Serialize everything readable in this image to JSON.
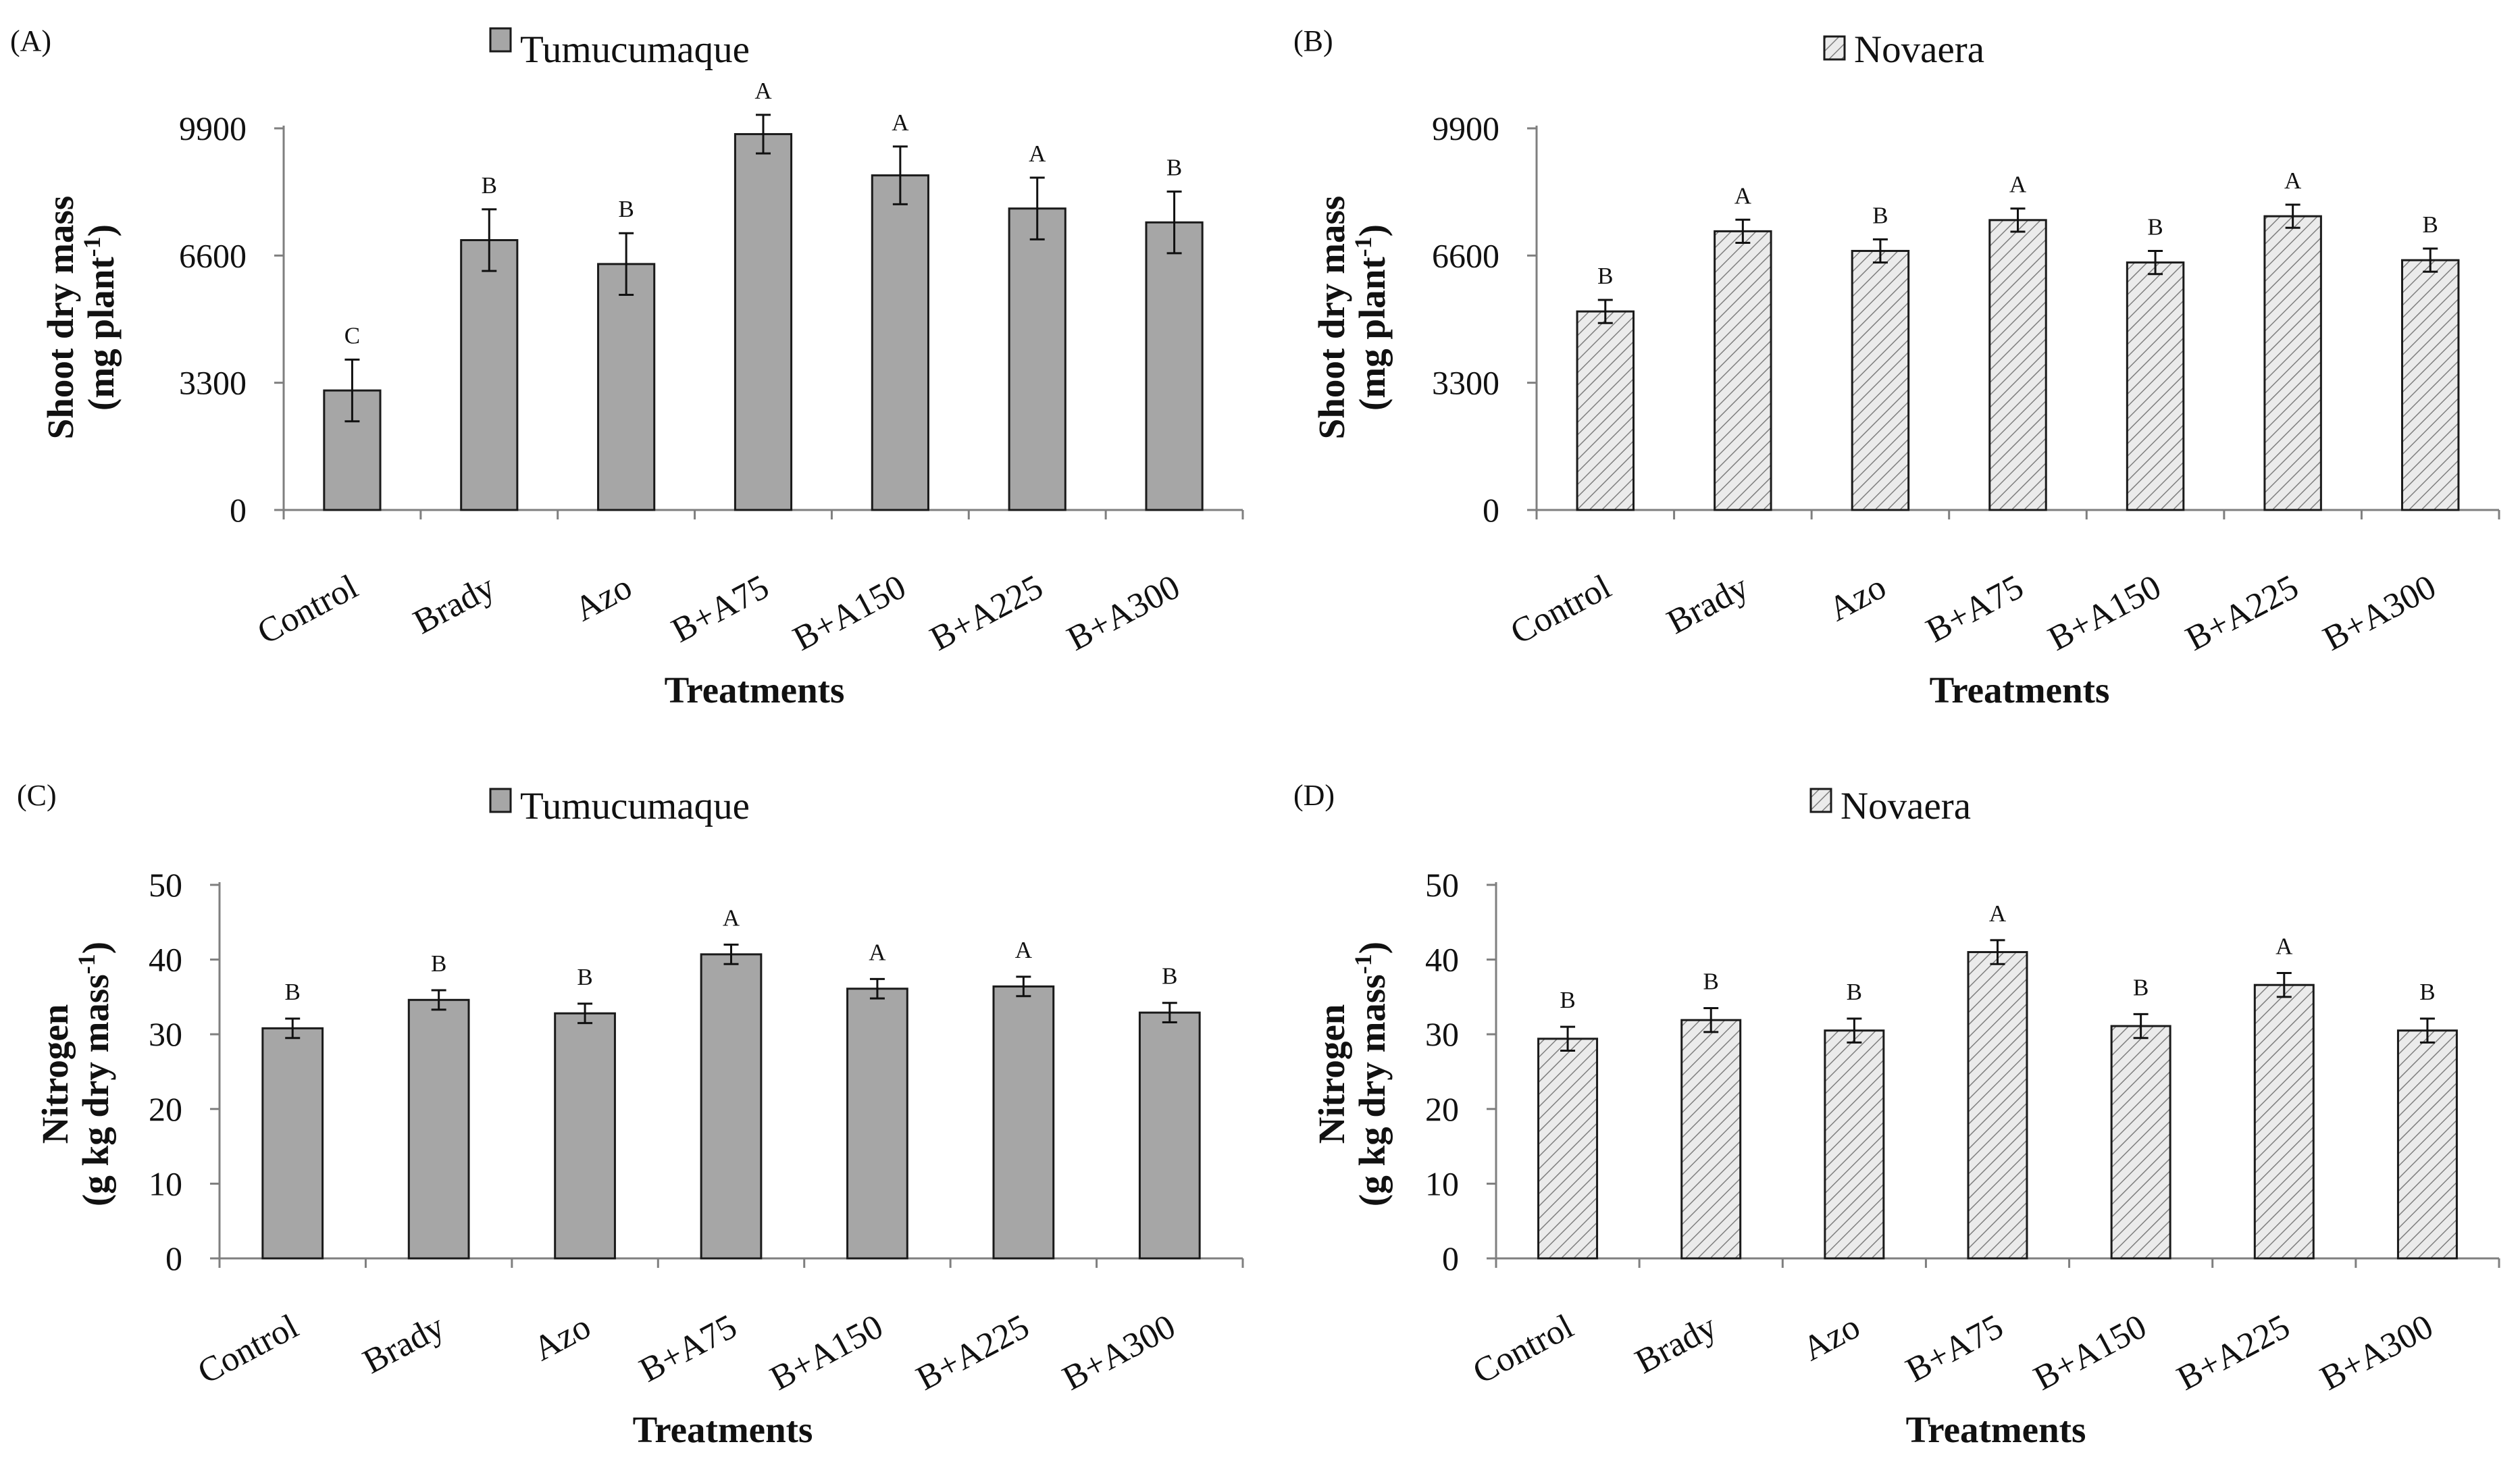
{
  "figure": {
    "panels": [
      {
        "label": "(A)",
        "legend": "Tumucumaque",
        "style": "solid"
      },
      {
        "label": "(B)",
        "legend": "Novaera",
        "style": "hatch"
      },
      {
        "label": "(C)",
        "legend": "Tumucumaque",
        "style": "solid"
      },
      {
        "label": "(D)",
        "legend": "Novaera",
        "style": "hatch"
      }
    ],
    "colors": {
      "solid_fill": "#a6a6a6",
      "hatch_fill": "#ebebeb",
      "hatch_line": "#7f7f7f",
      "bar_stroke": "#1a1a1a",
      "axis": "#7f7f7f",
      "text": "#111111"
    }
  },
  "chart_data": [
    {
      "panel": "(A)",
      "type": "bar",
      "series_name": "Tumucumaque",
      "categories": [
        "Control",
        "Brady",
        "Azo",
        "B+A75",
        "B+A150",
        "B+A225",
        "B+A300"
      ],
      "values": [
        3100,
        7000,
        6380,
        9750,
        8680,
        7820,
        7460
      ],
      "errors": [
        800,
        800,
        800,
        500,
        750,
        800,
        800
      ],
      "letters": [
        "C",
        "B",
        "B",
        "A",
        "A",
        "A",
        "B"
      ],
      "xlabel": "Treatments",
      "ylabel_line1": "Shoot dry mass",
      "ylabel_line2": "(mg plant",
      "ylabel_sup": "-1",
      "ylabel_close": ")",
      "ylim": [
        0,
        9900
      ],
      "yticks": [
        0,
        3300,
        6600,
        9900
      ],
      "ytick_labels": [
        "0",
        "3300",
        "6600",
        "9900"
      ]
    },
    {
      "panel": "(B)",
      "type": "bar",
      "series_name": "Novaera",
      "categories": [
        "Control",
        "Brady",
        "Azo",
        "B+A75",
        "B+A150",
        "B+A225",
        "B+A300"
      ],
      "values": [
        5150,
        7230,
        6720,
        7520,
        6420,
        7620,
        6480
      ],
      "errors": [
        300,
        300,
        300,
        300,
        300,
        300,
        300
      ],
      "letters": [
        "B",
        "A",
        "B",
        "A",
        "B",
        "A",
        "B"
      ],
      "xlabel": "Treatments",
      "ylabel_line1": "Shoot dry mass",
      "ylabel_line2": "(mg plant",
      "ylabel_sup": "-1",
      "ylabel_close": ")",
      "ylim": [
        0,
        9900
      ],
      "yticks": [
        0,
        3300,
        6600,
        9900
      ],
      "ytick_labels": [
        "0",
        "3300",
        "6600",
        "9900"
      ]
    },
    {
      "panel": "(C)",
      "type": "bar",
      "series_name": "Tumucumaque",
      "categories": [
        "Control",
        "Brady",
        "Azo",
        "B+A75",
        "B+A150",
        "B+A225",
        "B+A300"
      ],
      "values": [
        30.8,
        34.6,
        32.8,
        40.7,
        36.1,
        36.4,
        32.9
      ],
      "errors": [
        1.3,
        1.3,
        1.3,
        1.3,
        1.3,
        1.3,
        1.3
      ],
      "letters": [
        "B",
        "B",
        "B",
        "A",
        "A",
        "A",
        "B"
      ],
      "xlabel": "Treatments",
      "ylabel_line1": "Nitrogen",
      "ylabel_line2": "(g kg dry mass",
      "ylabel_sup": "-1",
      "ylabel_close": ")",
      "ylim": [
        0,
        50
      ],
      "yticks": [
        0,
        10,
        20,
        30,
        40,
        50
      ],
      "ytick_labels": [
        "0",
        "10",
        "20",
        "30",
        "40",
        "50"
      ]
    },
    {
      "panel": "(D)",
      "type": "bar",
      "series_name": "Novaera",
      "categories": [
        "Control",
        "Brady",
        "Azo",
        "B+A75",
        "B+A150",
        "B+A225",
        "B+A300"
      ],
      "values": [
        29.4,
        31.9,
        30.5,
        41.0,
        31.1,
        36.6,
        30.5
      ],
      "errors": [
        1.6,
        1.6,
        1.6,
        1.6,
        1.6,
        1.6,
        1.6
      ],
      "letters": [
        "B",
        "B",
        "B",
        "A",
        "B",
        "A",
        "B"
      ],
      "xlabel": "Treatments",
      "ylabel_line1": "Nitrogen",
      "ylabel_line2": "(g kg dry mass",
      "ylabel_sup": "-1",
      "ylabel_close": ")",
      "ylim": [
        0,
        50
      ],
      "yticks": [
        0,
        10,
        20,
        30,
        40,
        50
      ],
      "ytick_labels": [
        "0",
        "10",
        "20",
        "30",
        "40",
        "50"
      ]
    }
  ]
}
